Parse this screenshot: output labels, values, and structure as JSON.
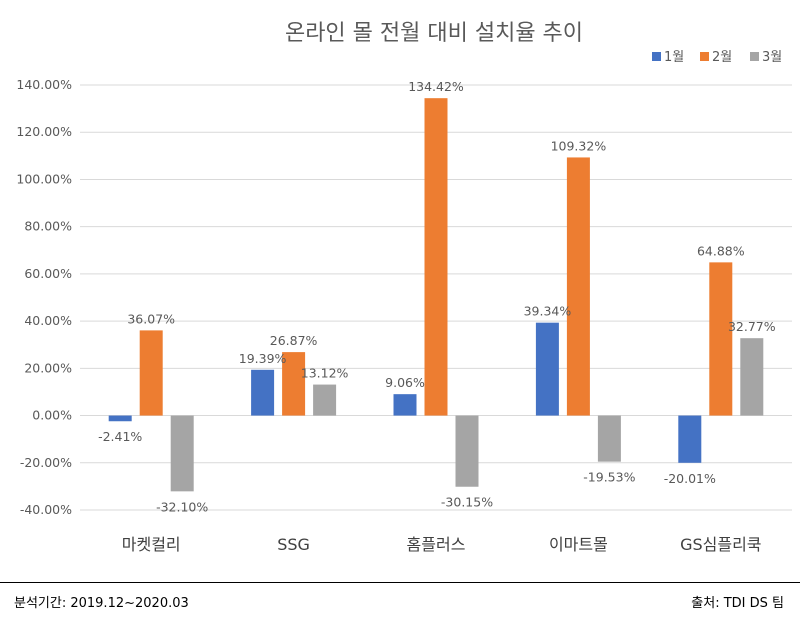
{
  "chart_data": {
    "type": "bar",
    "title": "온라인 몰 전월 대비 설치율 추이",
    "categories": [
      "마켓컬리",
      "SSG",
      "홈플러스",
      "이마트몰",
      "GS심플리쿡"
    ],
    "series": [
      {
        "name": "1월",
        "color": "#4472c4",
        "values": [
          -2.41,
          19.39,
          9.06,
          39.34,
          -20.01
        ],
        "labels": [
          "-2.41%",
          "19.39%",
          "9.06%",
          "39.34%",
          "-20.01%"
        ]
      },
      {
        "name": "2월",
        "color": "#ed7d31",
        "values": [
          36.07,
          26.87,
          134.42,
          109.32,
          64.88
        ],
        "labels": [
          "36.07%",
          "26.87%",
          "134.42%",
          "109.32%",
          "64.88%"
        ]
      },
      {
        "name": "3월",
        "color": "#a5a5a5",
        "values": [
          -32.1,
          13.12,
          -30.15,
          -19.53,
          32.77
        ],
        "labels": [
          "-32.10%",
          "13.12%",
          "-30.15%",
          "-19.53%",
          "32.77%"
        ]
      }
    ],
    "ylim": [
      -40,
      140
    ],
    "yticks": [
      140,
      120,
      100,
      80,
      60,
      40,
      20,
      0,
      -20,
      -40
    ],
    "ytick_labels": [
      "140.00%",
      "120.00%",
      "100.00%",
      "80.00%",
      "60.00%",
      "40.00%",
      "20.00%",
      "0.00%",
      "-20.00%",
      "-40.00%"
    ],
    "grid": true,
    "legend_position": "top-right"
  },
  "footer": {
    "period": "분석기간: 2019.12~2020.03",
    "source": "출처: TDI DS 팀"
  }
}
